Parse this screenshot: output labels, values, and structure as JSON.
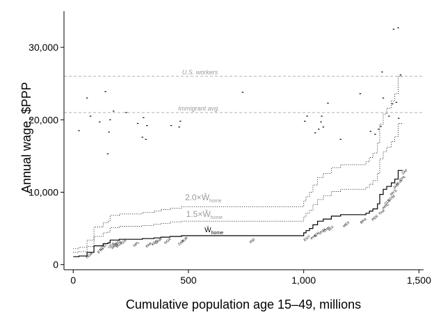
{
  "chart_data": {
    "type": "line",
    "xlabel": "Cumulative population age 15–49, millions",
    "ylabel": "Annual wage, $PPP",
    "xlim": [
      -40,
      1520
    ],
    "ylim": [
      -700,
      35000
    ],
    "x_ticks": [
      0,
      500,
      1000,
      1500
    ],
    "x_tick_labels": [
      "0",
      "500",
      "1,000",
      "1,500"
    ],
    "y_ticks": [
      0,
      10000,
      20000,
      30000
    ],
    "y_tick_labels": [
      "0",
      "10,000",
      "20,000",
      "30,000"
    ],
    "grid": false,
    "reference_lines": [
      {
        "label": "U.S. workers",
        "y": 26000,
        "label_x": 550
      },
      {
        "label": "Immigrant avg.",
        "y": 21000,
        "label_x": 545
      }
    ],
    "multiple_labels": [
      {
        "prefix": "2.0",
        "suffix": "home",
        "x": 485,
        "y": 8900
      },
      {
        "prefix": "1.5",
        "suffix": "home",
        "x": 490,
        "y": 6600
      },
      {
        "prefix": "",
        "suffix": "home",
        "x": 570,
        "y": 4500
      }
    ],
    "series": [
      {
        "name": "W̄ home",
        "style": "solid",
        "points": [
          [
            0,
            1100
          ],
          [
            25,
            1100
          ],
          [
            25,
            1200
          ],
          [
            60,
            1200
          ],
          [
            60,
            1700
          ],
          [
            90,
            1700
          ],
          [
            90,
            2600
          ],
          [
            130,
            2600
          ],
          [
            130,
            2900
          ],
          [
            150,
            2900
          ],
          [
            150,
            3000
          ],
          [
            160,
            3000
          ],
          [
            160,
            3400
          ],
          [
            200,
            3400
          ],
          [
            200,
            3500
          ],
          [
            300,
            3500
          ],
          [
            300,
            3600
          ],
          [
            350,
            3600
          ],
          [
            350,
            3700
          ],
          [
            380,
            3700
          ],
          [
            380,
            3800
          ],
          [
            420,
            3800
          ],
          [
            420,
            3900
          ],
          [
            470,
            3900
          ],
          [
            470,
            4000
          ],
          [
            1000,
            4000
          ],
          [
            1000,
            4400
          ],
          [
            1010,
            4400
          ],
          [
            1010,
            4700
          ],
          [
            1025,
            4700
          ],
          [
            1025,
            5000
          ],
          [
            1040,
            5000
          ],
          [
            1040,
            5500
          ],
          [
            1060,
            5500
          ],
          [
            1060,
            6000
          ],
          [
            1085,
            6000
          ],
          [
            1085,
            6300
          ],
          [
            1120,
            6300
          ],
          [
            1120,
            6700
          ],
          [
            1160,
            6700
          ],
          [
            1160,
            6900
          ],
          [
            1270,
            6900
          ],
          [
            1270,
            7100
          ],
          [
            1285,
            7100
          ],
          [
            1285,
            7400
          ],
          [
            1300,
            7400
          ],
          [
            1300,
            7700
          ],
          [
            1320,
            7700
          ],
          [
            1320,
            8400
          ],
          [
            1330,
            8400
          ],
          [
            1330,
            9700
          ],
          [
            1345,
            9700
          ],
          [
            1345,
            10400
          ],
          [
            1360,
            10400
          ],
          [
            1360,
            10800
          ],
          [
            1380,
            10800
          ],
          [
            1380,
            11300
          ],
          [
            1395,
            11300
          ],
          [
            1395,
            11800
          ],
          [
            1410,
            11800
          ],
          [
            1410,
            13000
          ],
          [
            1430,
            13000
          ]
        ]
      },
      {
        "name": "1.5 × W̄ home",
        "style": "dotted",
        "points": [
          [
            0,
            1700
          ],
          [
            25,
            1700
          ],
          [
            25,
            1800
          ],
          [
            60,
            1800
          ],
          [
            60,
            2500
          ],
          [
            90,
            2500
          ],
          [
            90,
            3900
          ],
          [
            130,
            3900
          ],
          [
            130,
            4400
          ],
          [
            150,
            4400
          ],
          [
            150,
            4500
          ],
          [
            160,
            4500
          ],
          [
            160,
            5100
          ],
          [
            200,
            5100
          ],
          [
            200,
            5300
          ],
          [
            300,
            5300
          ],
          [
            300,
            5400
          ],
          [
            350,
            5400
          ],
          [
            350,
            5600
          ],
          [
            380,
            5600
          ],
          [
            380,
            5700
          ],
          [
            420,
            5700
          ],
          [
            420,
            5900
          ],
          [
            470,
            5900
          ],
          [
            470,
            6000
          ],
          [
            1000,
            6000
          ],
          [
            1000,
            6600
          ],
          [
            1010,
            6600
          ],
          [
            1010,
            7100
          ],
          [
            1025,
            7100
          ],
          [
            1025,
            7500
          ],
          [
            1040,
            7500
          ],
          [
            1040,
            8300
          ],
          [
            1060,
            8300
          ],
          [
            1060,
            9000
          ],
          [
            1085,
            9000
          ],
          [
            1085,
            9500
          ],
          [
            1120,
            9500
          ],
          [
            1120,
            10100
          ],
          [
            1160,
            10100
          ],
          [
            1160,
            10400
          ],
          [
            1270,
            10400
          ],
          [
            1270,
            10700
          ],
          [
            1285,
            10700
          ],
          [
            1285,
            11100
          ],
          [
            1300,
            11100
          ],
          [
            1300,
            11600
          ],
          [
            1320,
            11600
          ],
          [
            1320,
            12600
          ],
          [
            1330,
            12600
          ],
          [
            1330,
            14600
          ],
          [
            1345,
            14600
          ],
          [
            1345,
            15600
          ],
          [
            1360,
            15600
          ],
          [
            1360,
            16200
          ],
          [
            1380,
            16200
          ],
          [
            1380,
            17000
          ],
          [
            1395,
            17000
          ],
          [
            1395,
            17700
          ],
          [
            1410,
            17700
          ],
          [
            1410,
            19500
          ],
          [
            1430,
            19500
          ]
        ]
      },
      {
        "name": "2.0 × W̄ home",
        "style": "dotted",
        "points": [
          [
            0,
            2200
          ],
          [
            25,
            2200
          ],
          [
            25,
            2400
          ],
          [
            60,
            2400
          ],
          [
            60,
            3400
          ],
          [
            90,
            3400
          ],
          [
            90,
            5200
          ],
          [
            130,
            5200
          ],
          [
            130,
            5800
          ],
          [
            150,
            5800
          ],
          [
            150,
            6000
          ],
          [
            160,
            6000
          ],
          [
            160,
            6800
          ],
          [
            200,
            6800
          ],
          [
            200,
            7000
          ],
          [
            300,
            7000
          ],
          [
            300,
            7200
          ],
          [
            350,
            7200
          ],
          [
            350,
            7400
          ],
          [
            380,
            7400
          ],
          [
            380,
            7600
          ],
          [
            420,
            7600
          ],
          [
            420,
            7800
          ],
          [
            470,
            7800
          ],
          [
            470,
            8000
          ],
          [
            1000,
            8000
          ],
          [
            1000,
            8800
          ],
          [
            1010,
            8800
          ],
          [
            1010,
            9400
          ],
          [
            1025,
            9400
          ],
          [
            1025,
            10000
          ],
          [
            1040,
            10000
          ],
          [
            1040,
            11000
          ],
          [
            1060,
            11000
          ],
          [
            1060,
            12000
          ],
          [
            1085,
            12000
          ],
          [
            1085,
            12600
          ],
          [
            1120,
            12600
          ],
          [
            1120,
            13400
          ],
          [
            1160,
            13400
          ],
          [
            1160,
            13800
          ],
          [
            1270,
            13800
          ],
          [
            1270,
            14200
          ],
          [
            1285,
            14200
          ],
          [
            1285,
            14800
          ],
          [
            1300,
            14800
          ],
          [
            1300,
            15400
          ],
          [
            1320,
            15400
          ],
          [
            1320,
            16800
          ],
          [
            1330,
            16800
          ],
          [
            1330,
            19400
          ],
          [
            1345,
            19400
          ],
          [
            1345,
            20800
          ],
          [
            1360,
            20800
          ],
          [
            1360,
            21600
          ],
          [
            1380,
            21600
          ],
          [
            1380,
            22600
          ],
          [
            1395,
            22600
          ],
          [
            1395,
            23600
          ],
          [
            1410,
            23600
          ],
          [
            1410,
            26000
          ],
          [
            1430,
            26000
          ]
        ]
      }
    ],
    "wage_markers": [
      [
        25,
        18500
      ],
      [
        60,
        23000
      ],
      [
        75,
        20500
      ],
      [
        115,
        19700
      ],
      [
        140,
        23900
      ],
      [
        150,
        15300
      ],
      [
        155,
        18300
      ],
      [
        160,
        20000
      ],
      [
        175,
        21200
      ],
      [
        230,
        21000
      ],
      [
        280,
        19500
      ],
      [
        300,
        17600
      ],
      [
        305,
        20300
      ],
      [
        315,
        17300
      ],
      [
        320,
        19200
      ],
      [
        425,
        19200
      ],
      [
        460,
        19000
      ],
      [
        465,
        19800
      ],
      [
        735,
        23800
      ],
      [
        1005,
        19800
      ],
      [
        1015,
        20500
      ],
      [
        1050,
        18200
      ],
      [
        1065,
        18700
      ],
      [
        1075,
        19700
      ],
      [
        1078,
        20500
      ],
      [
        1085,
        19000
      ],
      [
        1105,
        22300
      ],
      [
        1160,
        17300
      ],
      [
        1245,
        23600
      ],
      [
        1290,
        18400
      ],
      [
        1310,
        18000
      ],
      [
        1325,
        18700
      ],
      [
        1335,
        19100
      ],
      [
        1340,
        26600
      ],
      [
        1345,
        23000
      ],
      [
        1370,
        20500
      ],
      [
        1385,
        22200
      ],
      [
        1390,
        32500
      ],
      [
        1402,
        22400
      ],
      [
        1410,
        32700
      ],
      [
        1412,
        20200
      ],
      [
        1420,
        26200
      ]
    ],
    "country_labels": [
      {
        "code": "NGA",
        "x": 60,
        "y": 1200
      },
      {
        "code": "ETH",
        "x": 110,
        "y": 1900
      },
      {
        "code": "COD",
        "x": 120,
        "y": 2300
      },
      {
        "code": "UGA",
        "x": 155,
        "y": 2600
      },
      {
        "code": "MOZ",
        "x": 170,
        "y": 2500
      },
      {
        "code": "BGD",
        "x": 190,
        "y": 2700
      },
      {
        "code": "MDG",
        "x": 180,
        "y": 2900
      },
      {
        "code": "TZA",
        "x": 210,
        "y": 3100
      },
      {
        "code": "NPL",
        "x": 265,
        "y": 2800
      },
      {
        "code": "PAK",
        "x": 320,
        "y": 2700
      },
      {
        "code": "KEN",
        "x": 345,
        "y": 3000
      },
      {
        "code": "GHA",
        "x": 360,
        "y": 3200
      },
      {
        "code": "NGA",
        "x": 400,
        "y": 3200
      },
      {
        "code": "ZAR",
        "x": 460,
        "y": 3000
      },
      {
        "code": "TUR",
        "x": 475,
        "y": 3400
      },
      {
        "code": "IND",
        "x": 770,
        "y": 3300
      },
      {
        "code": "EGY",
        "x": 1005,
        "y": 3600
      },
      {
        "code": "PHL",
        "x": 1035,
        "y": 3800
      },
      {
        "code": "IDN",
        "x": 1050,
        "y": 4200
      },
      {
        "code": "VNM",
        "x": 1070,
        "y": 4500
      },
      {
        "code": "CHN",
        "x": 1090,
        "y": 4800
      },
      {
        "code": "SLV",
        "x": 1110,
        "y": 5000
      },
      {
        "code": "MEX",
        "x": 1175,
        "y": 5500
      },
      {
        "code": "BRA",
        "x": 1250,
        "y": 6000
      },
      {
        "code": "PER",
        "x": 1300,
        "y": 6400
      },
      {
        "code": "THA",
        "x": 1330,
        "y": 7200
      },
      {
        "code": "ARG",
        "x": 1345,
        "y": 8000
      },
      {
        "code": "COL",
        "x": 1355,
        "y": 8600
      },
      {
        "code": "DOM",
        "x": 1370,
        "y": 9100
      },
      {
        "code": "MYS",
        "x": 1380,
        "y": 9900
      },
      {
        "code": "JAM",
        "x": 1392,
        "y": 10800
      },
      {
        "code": "RUS",
        "x": 1405,
        "y": 11300
      },
      {
        "code": "CHL",
        "x": 1420,
        "y": 11900
      },
      {
        "code": "ZAF",
        "x": 1430,
        "y": 12800
      }
    ]
  }
}
